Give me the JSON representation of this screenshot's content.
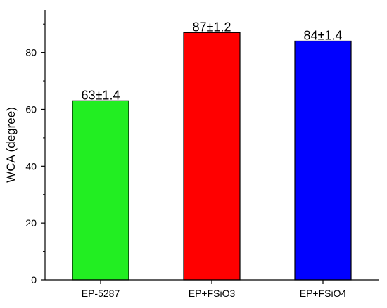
{
  "chart_data": {
    "type": "bar",
    "categories": [
      "EP-5287",
      "EP+FSiO3",
      "EP+FSiO4"
    ],
    "values": [
      63,
      87,
      84
    ],
    "errors": [
      1.4,
      1.2,
      1.4
    ],
    "data_labels": [
      "63±1.4",
      "87±1.2",
      "84±1.4"
    ],
    "colors": [
      "#22ee22",
      "#ff0000",
      "#0000ff"
    ],
    "title": "",
    "xlabel": "",
    "ylabel": "WCA (degree)",
    "ylim": [
      0,
      95
    ],
    "yticks": [
      0,
      20,
      40,
      60,
      80
    ],
    "grid": false,
    "legend": "none"
  }
}
